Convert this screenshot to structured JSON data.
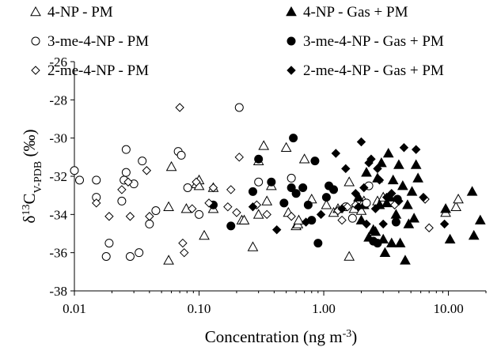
{
  "chart_data": {
    "type": "scatter",
    "title": "",
    "xlabel": "Concentration (ng m",
    "xlabel_superscript": "-3",
    "xlabel_suffix": ")",
    "ylabel_prefix": "δ",
    "ylabel_superscript": "13",
    "ylabel_main": "C",
    "ylabel_subscript": "V-PDB",
    "ylabel_suffix": " (‰)",
    "x_scale": "log",
    "xlim": [
      0.01,
      20
    ],
    "ylim": [
      -38,
      -26
    ],
    "x_ticks": [
      0.01,
      0.1,
      1,
      10
    ],
    "x_tick_labels": [
      "0.01",
      "0.10",
      "1.00",
      "10.00"
    ],
    "y_ticks": [
      -38,
      -36,
      -34,
      -32,
      -30,
      -28,
      -26
    ],
    "y_tick_labels": [
      "-38",
      "-36",
      "-34",
      "-32",
      "-30",
      "-28",
      "-26"
    ],
    "grid": false,
    "legend_position": "top",
    "series": [
      {
        "name": "4-NP - PM",
        "marker": "triangle-open",
        "points": [
          [
            0.057,
            -36.4
          ],
          [
            0.057,
            -33.6
          ],
          [
            0.06,
            -31.5
          ],
          [
            0.079,
            -33.7
          ],
          [
            0.095,
            -32.4
          ],
          [
            0.1,
            -32.2
          ],
          [
            0.1,
            -32.5
          ],
          [
            0.11,
            -35.1
          ],
          [
            0.13,
            -32.6
          ],
          [
            0.13,
            -33.7
          ],
          [
            0.22,
            -34.3
          ],
          [
            0.23,
            -34.3
          ],
          [
            0.27,
            -35.7
          ],
          [
            0.3,
            -34
          ],
          [
            0.3,
            -31.2
          ],
          [
            0.33,
            -30.4
          ],
          [
            0.35,
            -33.3
          ],
          [
            0.38,
            -32.5
          ],
          [
            0.5,
            -30.5
          ],
          [
            0.52,
            -33.9
          ],
          [
            0.6,
            -34.6
          ],
          [
            0.62,
            -34.5
          ],
          [
            0.63,
            -34.3
          ],
          [
            0.7,
            -31.1
          ],
          [
            0.8,
            -33.2
          ],
          [
            1.05,
            -33.5
          ],
          [
            1.2,
            -33.9
          ],
          [
            1.3,
            -33.7
          ],
          [
            1.6,
            -32.3
          ],
          [
            1.6,
            -36.2
          ],
          [
            1.75,
            -33.7
          ],
          [
            2.0,
            -33.8
          ],
          [
            2.1,
            -33.3
          ],
          [
            2.7,
            -33.3
          ],
          [
            3.0,
            -33.1
          ],
          [
            9.5,
            -33.9
          ],
          [
            11.5,
            -33.6
          ],
          [
            12.0,
            -33.2
          ]
        ]
      },
      {
        "name": "4-NP - Gas + PM",
        "marker": "triangle-filled",
        "points": [
          [
            1.9,
            -33.1
          ],
          [
            2.0,
            -34.3
          ],
          [
            2.1,
            -33.5
          ],
          [
            2.2,
            -31.8
          ],
          [
            2.3,
            -35.2
          ],
          [
            2.5,
            -34.8
          ],
          [
            2.6,
            -34.9
          ],
          [
            2.7,
            -32.1
          ],
          [
            2.8,
            -33.5
          ],
          [
            2.9,
            -31.3
          ],
          [
            3.0,
            -35.3
          ],
          [
            3.1,
            -36
          ],
          [
            3.2,
            -33.4
          ],
          [
            3.3,
            -30.8
          ],
          [
            3.4,
            -33.1
          ],
          [
            3.5,
            -35.5
          ],
          [
            3.6,
            -32.2
          ],
          [
            3.8,
            -34
          ],
          [
            4.0,
            -31.4
          ],
          [
            4.1,
            -35.5
          ],
          [
            4.3,
            -32.5
          ],
          [
            4.5,
            -36.4
          ],
          [
            4.7,
            -33.5
          ],
          [
            4.8,
            -34.5
          ],
          [
            5.1,
            -32.8
          ],
          [
            5.3,
            -34.2
          ],
          [
            5.5,
            -31.4
          ],
          [
            5.7,
            -32.1
          ],
          [
            9.5,
            -33.7
          ],
          [
            10.3,
            -35.3
          ],
          [
            15.5,
            -32.8
          ],
          [
            16.0,
            -35.1
          ],
          [
            18.0,
            -34.3
          ]
        ]
      },
      {
        "name": "3-me-4-NP - PM",
        "marker": "circle-open",
        "points": [
          [
            0.01,
            -31.7
          ],
          [
            0.011,
            -32.2
          ],
          [
            0.015,
            -32.2
          ],
          [
            0.015,
            -33.1
          ],
          [
            0.018,
            -36.2
          ],
          [
            0.019,
            -35.5
          ],
          [
            0.024,
            -33.3
          ],
          [
            0.025,
            -32.2
          ],
          [
            0.026,
            -30.6
          ],
          [
            0.026,
            -31.8
          ],
          [
            0.028,
            -36.2
          ],
          [
            0.03,
            -32.4
          ],
          [
            0.033,
            -36
          ],
          [
            0.035,
            -31.2
          ],
          [
            0.04,
            -34.5
          ],
          [
            0.045,
            -33.8
          ],
          [
            0.068,
            -30.7
          ],
          [
            0.072,
            -30.9
          ],
          [
            0.081,
            -32.6
          ],
          [
            0.1,
            -34
          ],
          [
            0.21,
            -28.4
          ],
          [
            0.3,
            -32.3
          ],
          [
            0.55,
            -32.1
          ],
          [
            1.5,
            -33.6
          ],
          [
            1.7,
            -34.2
          ],
          [
            2.2,
            -33.4
          ],
          [
            2.3,
            -32.5
          ]
        ]
      },
      {
        "name": "3-me-4-NP - Gas + PM",
        "marker": "circle-filled",
        "points": [
          [
            0.13,
            -33.5
          ],
          [
            0.18,
            -34.6
          ],
          [
            0.27,
            -32.8
          ],
          [
            0.3,
            -31.1
          ],
          [
            0.38,
            -32.3
          ],
          [
            0.48,
            -33.4
          ],
          [
            0.55,
            -32.6
          ],
          [
            0.57,
            -30.0
          ],
          [
            0.6,
            -32.9
          ],
          [
            0.68,
            -32.6
          ],
          [
            0.75,
            -33.5
          ],
          [
            0.8,
            -34.3
          ],
          [
            0.85,
            -31.2
          ],
          [
            0.9,
            -35.5
          ],
          [
            1.05,
            -33.1
          ],
          [
            1.1,
            -32.5
          ],
          [
            1.2,
            -32.7
          ],
          [
            2.5,
            -35.4
          ],
          [
            2.7,
            -35.5
          ],
          [
            3.8,
            -34.4
          ],
          [
            3.9,
            -33.2
          ]
        ]
      },
      {
        "name": "2-me-4-NP - PM",
        "marker": "diamond-open",
        "points": [
          [
            0.015,
            -33.4
          ],
          [
            0.019,
            -34.1
          ],
          [
            0.024,
            -32.7
          ],
          [
            0.027,
            -32.3
          ],
          [
            0.028,
            -34.1
          ],
          [
            0.038,
            -31.7
          ],
          [
            0.04,
            -34.1
          ],
          [
            0.07,
            -28.4
          ],
          [
            0.074,
            -35.5
          ],
          [
            0.076,
            -36
          ],
          [
            0.088,
            -33.7
          ],
          [
            0.095,
            -32.3
          ],
          [
            0.12,
            -33.4
          ],
          [
            0.13,
            -32.6
          ],
          [
            0.17,
            -33.6
          ],
          [
            0.18,
            -32.7
          ],
          [
            0.2,
            -33.9
          ],
          [
            0.21,
            -31
          ],
          [
            0.29,
            -33.5
          ],
          [
            0.35,
            -34
          ],
          [
            0.55,
            -34.1
          ],
          [
            1.3,
            -33.8
          ],
          [
            1.4,
            -34.3
          ],
          [
            1.55,
            -33.6
          ],
          [
            1.8,
            -33.5
          ],
          [
            3.7,
            -33.5
          ],
          [
            6.5,
            -33.2
          ],
          [
            7.0,
            -34.7
          ]
        ]
      },
      {
        "name": "2-me-4-NP - Gas + PM",
        "marker": "diamond-filled",
        "points": [
          [
            0.27,
            -33.6
          ],
          [
            0.42,
            -34.8
          ],
          [
            0.72,
            -34.4
          ],
          [
            0.95,
            -34
          ],
          [
            1.25,
            -30.8
          ],
          [
            1.4,
            -33.7
          ],
          [
            1.5,
            -31.6
          ],
          [
            1.8,
            -32.9
          ],
          [
            1.9,
            -33.6
          ],
          [
            2.0,
            -30.2
          ],
          [
            2.1,
            -32.6
          ],
          [
            2.2,
            -34.5
          ],
          [
            2.3,
            -31.3
          ],
          [
            2.4,
            -31.1
          ],
          [
            2.6,
            -33.7
          ],
          [
            2.7,
            -31.6
          ],
          [
            2.8,
            -32.2
          ],
          [
            3.0,
            -34.5
          ],
          [
            3.2,
            -33.1
          ],
          [
            3.5,
            -32.9
          ],
          [
            4.0,
            -33.3
          ],
          [
            4.4,
            -30.5
          ],
          [
            5.5,
            -30.6
          ],
          [
            6.3,
            -33.1
          ],
          [
            9.3,
            -34.5
          ]
        ]
      }
    ]
  }
}
